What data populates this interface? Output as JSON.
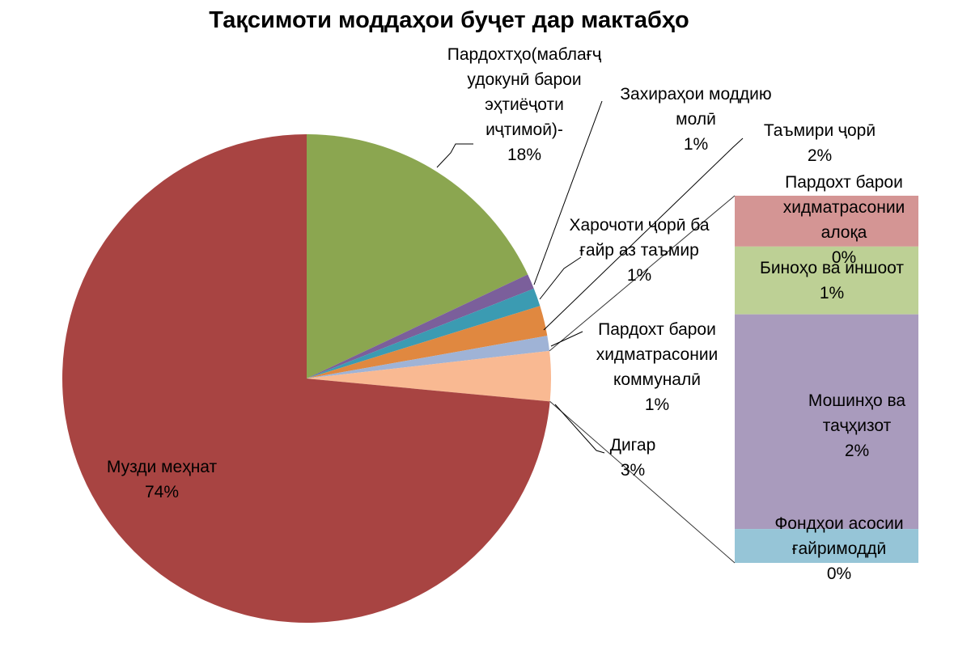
{
  "chart_data": {
    "type": "pie",
    "title": "Тақсимоти моддаҳои буҷет дар мактабҳо",
    "slices": [
      {
        "label": [
          "Пардохтҳо(маблағҷ",
          "удокунӣ барои",
          "эҳтиёҷоти",
          "иҷтимоӣ)-"
        ],
        "value_label": "18%",
        "value": 18,
        "color": "#8ba650"
      },
      {
        "label": [
          "Захираҳои моддию",
          "молӣ"
        ],
        "value_label": "1%",
        "value": 1,
        "color": "#7b5f9b"
      },
      {
        "label": [
          "Харочоти ҷорӣ ба",
          "ғайр аз таъмир"
        ],
        "value_label": "1%",
        "value": 1.2,
        "color": "#3b9bb2"
      },
      {
        "label": [
          "Таъмири ҷорӣ"
        ],
        "value_label": "2%",
        "value": 2,
        "color": "#e08840"
      },
      {
        "label": [
          "Пардохт барои",
          "хидматрасонии",
          "коммуналӣ"
        ],
        "value_label": "1%",
        "value": 1,
        "color": "#9fb3d6"
      },
      {
        "label": [
          "Дигар"
        ],
        "value_label": "3%",
        "value": 3.3,
        "color": "#f9b992"
      },
      {
        "label": [
          "Музди меҳнат"
        ],
        "value_label": "74%",
        "value": 73.5,
        "color": "#a84442"
      }
    ],
    "breakdown_of": "Дигар",
    "breakdown": [
      {
        "label": [
          "Пардохт барои",
          "хидматрасонии",
          "алоқа"
        ],
        "value_label": "0%",
        "value": 0.45,
        "color": "#d49594"
      },
      {
        "label": [
          "Биноҳо ва иншоот"
        ],
        "value_label": "1%",
        "value": 0.6,
        "color": "#bdd095"
      },
      {
        "label": [
          "Мошинҳо ва",
          "таҷҳизот"
        ],
        "value_label": "2%",
        "value": 1.9,
        "color": "#a99bbd"
      },
      {
        "label": [
          "Фондҳои асосии",
          "ғайримоддӣ"
        ],
        "value_label": "0%",
        "value": 0.3,
        "color": "#96c5d7"
      }
    ]
  }
}
